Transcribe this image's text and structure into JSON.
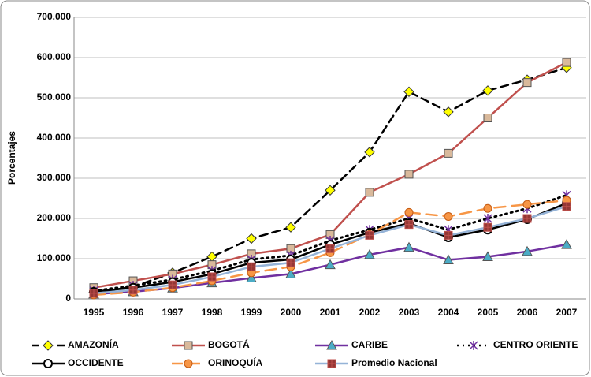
{
  "chart_data": {
    "type": "line",
    "y_label": "Porcentajes",
    "categories": [
      "1995",
      "1996",
      "1997",
      "1998",
      "1999",
      "2000",
      "2001",
      "2002",
      "2003",
      "2004",
      "2005",
      "2006",
      "2007"
    ],
    "ylim": [
      0,
      700000
    ],
    "yticks": [
      0,
      {
        "value": 100000,
        "label": "100.000"
      },
      {
        "value": 200000,
        "label": "200.000"
      },
      {
        "value": 300000,
        "label": "300.000"
      },
      {
        "value": 400000,
        "label": "400.000"
      },
      {
        "value": 500000,
        "label": "500.000"
      },
      {
        "value": 600000,
        "label": "600.000"
      },
      {
        "value": 700000,
        "label": "700.000"
      }
    ],
    "grid": true,
    "legend": "bottom",
    "series": [
      {
        "name": "AMAZONÍA",
        "color": "#000000",
        "marker_color": "#ffff00",
        "marker": "diamond",
        "dash": "10,6",
        "values": [
          16000,
          30000,
          65000,
          105000,
          150000,
          178000,
          270000,
          365000,
          515000,
          465000,
          518000,
          545000,
          575000
        ]
      },
      {
        "name": "BOGOTÁ",
        "color": "#c0504d",
        "marker_color": "#d9b99b",
        "marker": "square",
        "dash": "none",
        "values": [
          28000,
          45000,
          62000,
          85000,
          112000,
          125000,
          160000,
          265000,
          310000,
          362000,
          450000,
          538000,
          588000
        ]
      },
      {
        "name": "CARIBE",
        "color": "#7030a0",
        "marker_color": "#4bacc6",
        "marker": "triangle",
        "dash": "none",
        "values": [
          12000,
          18000,
          27000,
          40000,
          52000,
          62000,
          85000,
          110000,
          128000,
          97000,
          105000,
          118000,
          135000
        ]
      },
      {
        "name": "CENTRO ORIENTE",
        "color": "#000000",
        "marker_color": "#7030a0",
        "marker": "star",
        "dash": "2,5",
        "values": [
          20000,
          33000,
          48000,
          70000,
          98000,
          108000,
          145000,
          172000,
          200000,
          172000,
          200000,
          225000,
          258000
        ]
      },
      {
        "name": "OCCIDENTE",
        "color": "#000000",
        "marker_color": "#ffffff",
        "marker": "circle",
        "dash": "none",
        "values": [
          18000,
          28000,
          42000,
          62000,
          90000,
          98000,
          135000,
          165000,
          188000,
          153000,
          172000,
          198000,
          238000
        ]
      },
      {
        "name": "ORINOQUÍA",
        "color": "#f79646",
        "marker_color": "#f79646",
        "marker": "circle",
        "dash": "14,8",
        "values": [
          10000,
          17000,
          28000,
          45000,
          65000,
          80000,
          115000,
          160000,
          215000,
          205000,
          225000,
          235000,
          245000
        ]
      },
      {
        "name": "Promedio Nacional",
        "color": "#95b3d7",
        "marker_color": "#953735",
        "marker": "square-cross",
        "dash": "none",
        "values": [
          14000,
          22000,
          35000,
          55000,
          80000,
          90000,
          125000,
          158000,
          185000,
          158000,
          178000,
          200000,
          230000
        ]
      }
    ]
  }
}
